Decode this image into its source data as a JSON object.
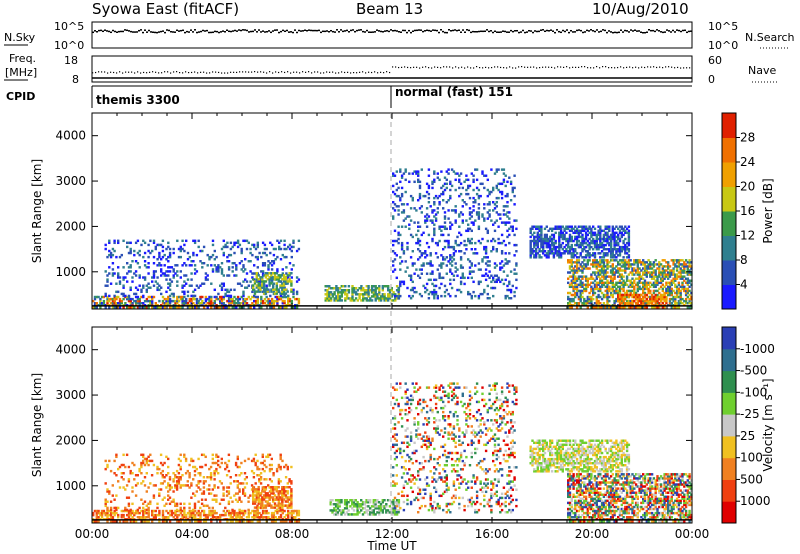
{
  "header": {
    "title": "Syowa East (fitACF)",
    "beam": "Beam 13",
    "date": "10/Aug/2010"
  },
  "status_panels": {
    "nsky": {
      "label": "N.Sky",
      "left_ticks": [
        "10^5",
        "10^0"
      ],
      "right_label": "N.Search",
      "right_ticks": [
        "10^5",
        "10^0"
      ]
    },
    "freq": {
      "label_line1": "Freq.",
      "label_line2": "[MHz]",
      "left_ticks": [
        "18",
        "8"
      ],
      "right_label": "Nave",
      "right_ticks": [
        "60",
        "0"
      ]
    },
    "cpid": {
      "label": "CPID",
      "segments": [
        {
          "name": "themis 3300",
          "start_hour": 0
        },
        {
          "name": "normal (fast) 151",
          "start_hour": 12
        }
      ]
    }
  },
  "chart_data": [
    {
      "type": "heatmap",
      "name": "power",
      "ylabel": "Slant Range [km]",
      "ylim": [
        180,
        4500
      ],
      "xlim_hours": [
        0,
        24
      ],
      "y_ticks": [
        "1000",
        "2000",
        "3000",
        "4000"
      ],
      "colorbar": {
        "label": "Power [dB]",
        "tick_labels": [
          "4",
          "8",
          "12",
          "16",
          "20",
          "24",
          "28"
        ],
        "colors": [
          "#1a1aff",
          "#2a4fb5",
          "#2f7f8f",
          "#3b9a4a",
          "#c8c814",
          "#f0a000",
          "#f07000",
          "#e02000"
        ]
      },
      "regions": [
        {
          "t0": 0.0,
          "t1": 8.3,
          "r0": 200,
          "r1": 450,
          "level": "mixed-high"
        },
        {
          "t0": 0.5,
          "t1": 8.3,
          "r0": 450,
          "r1": 1700,
          "level": "low"
        },
        {
          "t0": 6.4,
          "t1": 8.0,
          "r0": 500,
          "r1": 1000,
          "level": "mid"
        },
        {
          "t0": 9.3,
          "t1": 12.3,
          "r0": 350,
          "r1": 700,
          "level": "mid"
        },
        {
          "t0": 12.0,
          "t1": 17.0,
          "r0": 400,
          "r1": 3300,
          "level": "low"
        },
        {
          "t0": 17.5,
          "t1": 21.5,
          "r0": 1300,
          "r1": 2000,
          "level": "low"
        },
        {
          "t0": 19.0,
          "t1": 24.0,
          "r0": 200,
          "r1": 1300,
          "level": "mid-high"
        },
        {
          "t0": 21.0,
          "t1": 23.0,
          "r0": 200,
          "r1": 500,
          "level": "high"
        }
      ]
    },
    {
      "type": "heatmap",
      "name": "velocity",
      "ylabel": "Slant Range [km]",
      "ylim": [
        180,
        4500
      ],
      "xlim_hours": [
        0,
        24
      ],
      "y_ticks": [
        "1000",
        "2000",
        "3000",
        "4000"
      ],
      "x_ticks": [
        "00:00",
        "04:00",
        "08:00",
        "12:00",
        "16:00",
        "20:00",
        "00:00"
      ],
      "xlabel": "Time UT",
      "colorbar": {
        "label": "Velocity [m s⁻¹]",
        "tick_labels": [
          "1000",
          "500",
          "100",
          "25",
          "-25",
          "-100",
          "-500",
          "-1000"
        ],
        "colors": [
          "#2a3fb5",
          "#2f6f8f",
          "#2f8f4f",
          "#6fcf2f",
          "#c8c8c8",
          "#f0c020",
          "#f08020",
          "#f04010",
          "#e00000"
        ]
      },
      "regions": [
        {
          "t0": 0.0,
          "t1": 8.3,
          "r0": 200,
          "r1": 450,
          "level": "negative"
        },
        {
          "t0": 0.5,
          "t1": 8.0,
          "r0": 450,
          "r1": 1700,
          "level": "negative"
        },
        {
          "t0": 6.4,
          "t1": 8.0,
          "r0": 500,
          "r1": 1000,
          "level": "negative"
        },
        {
          "t0": 9.5,
          "t1": 12.3,
          "r0": 350,
          "r1": 700,
          "level": "positive-small"
        },
        {
          "t0": 12.0,
          "t1": 17.0,
          "r0": 400,
          "r1": 3300,
          "level": "mixed"
        },
        {
          "t0": 17.5,
          "t1": 21.5,
          "r0": 1300,
          "r1": 2000,
          "level": "near-zero"
        },
        {
          "t0": 19.0,
          "t1": 24.0,
          "r0": 200,
          "r1": 1300,
          "level": "mixed"
        }
      ]
    }
  ]
}
